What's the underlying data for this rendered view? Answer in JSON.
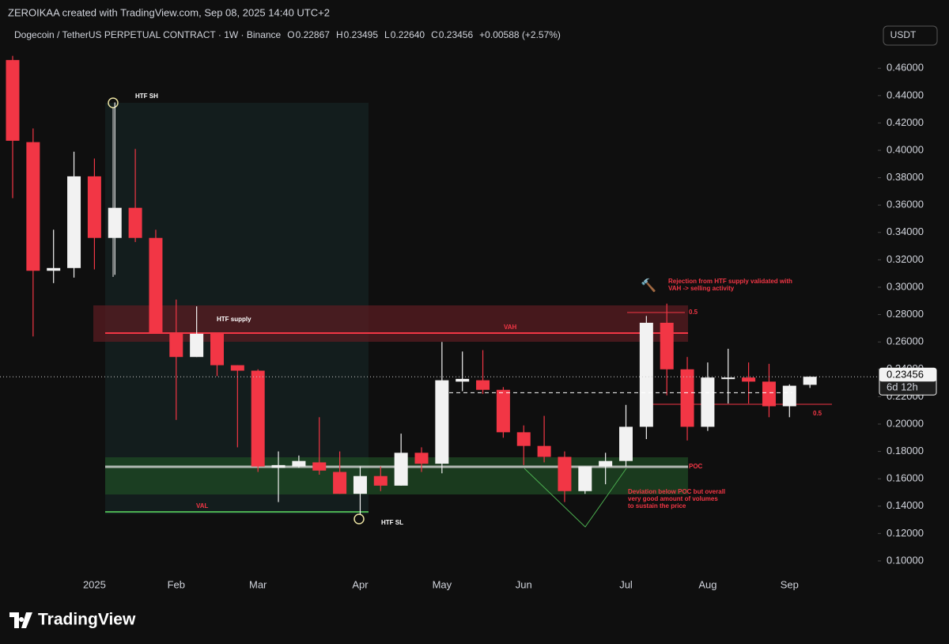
{
  "header": {
    "attribution": "ZEROIKAA created with TradingView.com, Sep 08, 2025 14:40 UTC+2",
    "symbol": "Dogecoin / TetherUS PERPETUAL CONTRACT · 1W · Binance",
    "ohlc": [
      "O",
      "0.22867",
      "H",
      "0.23495",
      "L",
      "0.22640",
      "C",
      "0.23456",
      "+0.00588 (+2.57%)"
    ],
    "currency": "USDT",
    "brand": "TradingView"
  },
  "chart_data": {
    "type": "candlestick",
    "categories": [
      null,
      null,
      null,
      null,
      "2025",
      null,
      null,
      null,
      "Feb",
      null,
      null,
      null,
      "Mar",
      null,
      null,
      null,
      null,
      "Apr",
      null,
      null,
      null,
      "May",
      null,
      null,
      null,
      "Jun",
      null,
      null,
      null,
      null,
      "Jul",
      null,
      null,
      null,
      "Aug",
      null,
      null,
      null,
      "Sep",
      null
    ],
    "open": [
      0.466,
      0.406,
      0.312,
      0.314,
      0.381,
      0.336,
      0.358,
      0.336,
      0.267,
      0.249,
      0.266,
      0.243,
      0.239,
      0.168,
      0.169,
      0.172,
      0.165,
      0.149,
      0.162,
      0.155,
      0.179,
      0.171,
      0.231,
      0.232,
      0.225,
      0.194,
      0.184,
      0.176,
      0.151,
      0.169,
      0.173,
      0.198,
      0.274,
      0.24,
      0.198,
      0.233,
      0.234,
      0.231,
      0.213,
      0.22867
    ],
    "high": [
      0.469,
      0.416,
      0.342,
      0.399,
      0.394,
      0.435,
      0.401,
      0.342,
      0.291,
      0.286,
      0.267,
      0.243,
      0.24,
      0.18,
      0.177,
      0.205,
      0.18,
      0.169,
      0.169,
      0.193,
      0.183,
      0.26,
      0.253,
      0.254,
      0.227,
      0.199,
      0.206,
      0.18,
      0.169,
      0.179,
      0.214,
      0.279,
      0.288,
      0.249,
      0.245,
      0.255,
      0.245,
      0.244,
      0.229,
      0.23495
    ],
    "low": [
      0.365,
      0.264,
      0.303,
      0.307,
      0.313,
      0.309,
      0.333,
      0.267,
      0.203,
      0.249,
      0.235,
      0.183,
      0.165,
      0.143,
      0.168,
      0.163,
      0.149,
      0.134,
      0.151,
      0.155,
      0.165,
      0.164,
      0.224,
      0.222,
      0.19,
      0.17,
      0.172,
      0.143,
      0.149,
      0.156,
      0.169,
      0.189,
      0.221,
      0.188,
      0.195,
      0.215,
      0.215,
      0.205,
      0.205,
      0.2264
    ],
    "close": [
      0.407,
      0.312,
      0.314,
      0.381,
      0.336,
      0.358,
      0.336,
      0.267,
      0.249,
      0.266,
      0.243,
      0.239,
      0.169,
      0.17,
      0.173,
      0.166,
      0.149,
      0.162,
      0.155,
      0.179,
      0.171,
      0.232,
      0.233,
      0.225,
      0.194,
      0.184,
      0.176,
      0.151,
      0.169,
      0.173,
      0.198,
      0.274,
      0.24,
      0.198,
      0.234,
      0.234,
      0.231,
      0.213,
      0.228,
      0.23456
    ],
    "up_color": "#f2f2f2",
    "down_color": "#f23645",
    "ylim": [
      0.0705,
      0.4925
    ],
    "yticks": [
      {
        "value": 0.1,
        "label": "0.10000"
      },
      {
        "value": 0.12,
        "label": "0.12000"
      },
      {
        "value": 0.14,
        "label": "0.14000"
      },
      {
        "value": 0.16,
        "label": "0.16000"
      },
      {
        "value": 0.18,
        "label": "0.18000"
      },
      {
        "value": 0.2,
        "label": "0.20000"
      },
      {
        "value": 0.22,
        "label": "0.22000"
      },
      {
        "value": 0.24,
        "label": "0.24000"
      },
      {
        "value": 0.26,
        "label": "0.26000"
      },
      {
        "value": 0.28,
        "label": "0.28000"
      },
      {
        "value": 0.3,
        "label": "0.30000"
      },
      {
        "value": 0.32,
        "label": "0.32000"
      },
      {
        "value": 0.34,
        "label": "0.34000"
      },
      {
        "value": 0.36,
        "label": "0.36000"
      },
      {
        "value": 0.38,
        "label": "0.38000"
      },
      {
        "value": 0.4,
        "label": "0.40000"
      },
      {
        "value": 0.42,
        "label": "0.42000"
      },
      {
        "value": 0.44,
        "label": "0.44000"
      },
      {
        "value": 0.46,
        "label": "0.46000"
      }
    ],
    "last_price": {
      "value": 0.23456,
      "label": "0.23456"
    },
    "countdown": "6d 12h",
    "annotations": {
      "htf_sh": "HTF SH",
      "htf_supply": "HTF supply",
      "vah": "VAH",
      "poc": "POC",
      "val": "VAL",
      "htf_sl": "HTF SL",
      "fib_top": "0.5",
      "fib_bottom": "0.5",
      "rejection": [
        "Rejection from HTF supply validated with",
        "VAH -> selling activity"
      ],
      "deviation": [
        "Deviation below POC but overall",
        "very good amount of volumes",
        "to sustain the price"
      ]
    }
  }
}
